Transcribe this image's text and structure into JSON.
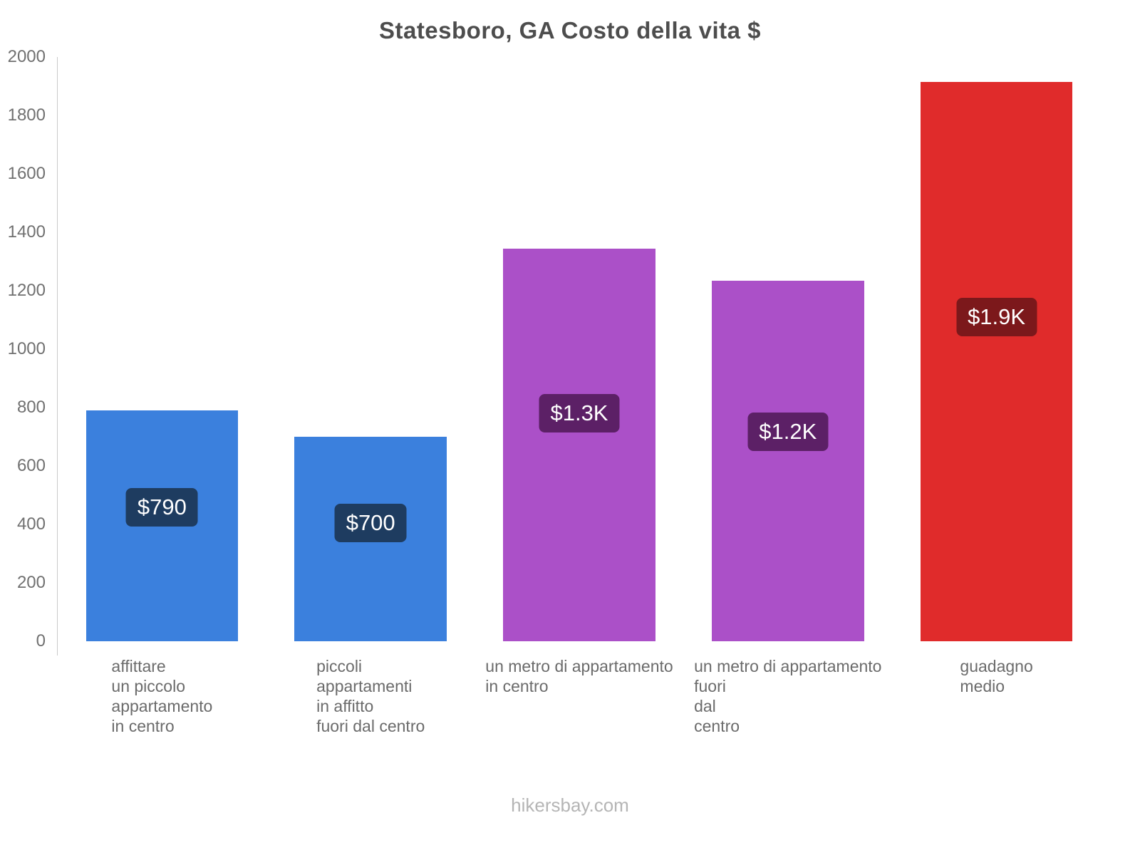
{
  "chart_data": {
    "type": "bar",
    "title": "Statesboro, GA Costo della vita $",
    "xlabel": "",
    "ylabel": "",
    "ylim": [
      0,
      2000
    ],
    "yticks": [
      0,
      200,
      400,
      600,
      800,
      1000,
      1200,
      1400,
      1600,
      1800,
      2000
    ],
    "grid": false,
    "legend": false,
    "categories": [
      "affittare un piccolo appartamento in centro",
      "piccoli appartamenti in affitto fuori dal centro",
      "un metro di appartamento in centro",
      "un metro di appartamento fuori dal centro",
      "guadagno medio"
    ],
    "values": [
      790,
      700,
      1345,
      1235,
      1915
    ],
    "bars": [
      {
        "id": "rent-small-apartment-center",
        "category_lines": [
          "affittare",
          "un piccolo",
          "appartamento",
          "in centro"
        ],
        "value": 790,
        "value_label": "$790",
        "color": "#3b80dd",
        "label_bg": "#1e3c60"
      },
      {
        "id": "rent-small-apartment-outside",
        "category_lines": [
          "piccoli",
          "appartamenti",
          "in affitto",
          "fuori dal centro"
        ],
        "value": 700,
        "value_label": "$700",
        "color": "#3b80dd",
        "label_bg": "#1e3c60"
      },
      {
        "id": "price-per-meter-center",
        "category_lines": [
          "un metro di appartamento",
          "in centro"
        ],
        "value": 1345,
        "value_label": "$1.3K",
        "color": "#ab50c8",
        "label_bg": "#5c2066"
      },
      {
        "id": "price-per-meter-outside",
        "category_lines": [
          "un metro di appartamento",
          "fuori",
          "dal",
          "centro"
        ],
        "value": 1235,
        "value_label": "$1.2K",
        "color": "#ab50c8",
        "label_bg": "#5c2066"
      },
      {
        "id": "average-salary",
        "category_lines": [
          "guadagno",
          "medio"
        ],
        "value": 1915,
        "value_label": "$1.9K",
        "color": "#e02b2b",
        "label_bg": "#7c181b"
      }
    ]
  },
  "footer": {
    "text": "hikersbay.com"
  }
}
